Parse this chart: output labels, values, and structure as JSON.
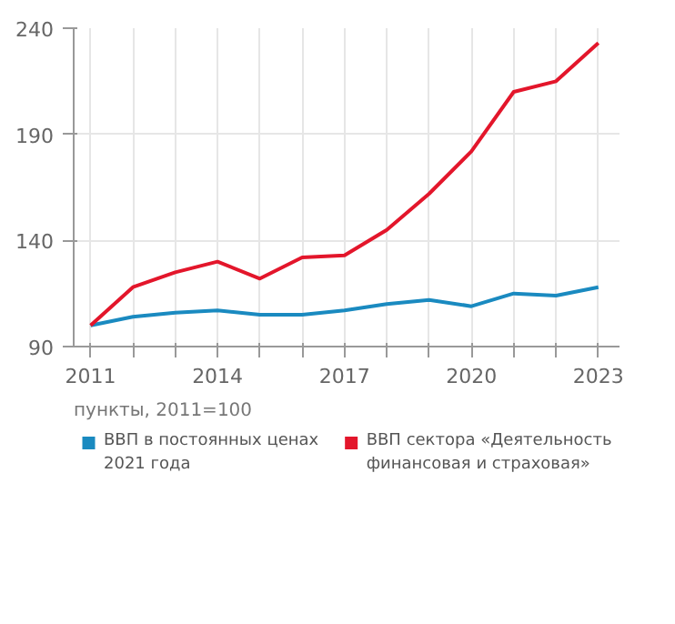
{
  "chart_data": {
    "type": "line",
    "x": [
      2011,
      2012,
      2013,
      2014,
      2015,
      2016,
      2017,
      2018,
      2019,
      2020,
      2021,
      2022,
      2023
    ],
    "series": [
      {
        "name": "ВВП в постоянных ценах 2021 года",
        "color": "#1a8ac0",
        "values": [
          100,
          104,
          106,
          107,
          105,
          105,
          107,
          110,
          112,
          109,
          115,
          114,
          118
        ]
      },
      {
        "name": "ВВП сектора «Деятельность финансовая и страховая»",
        "color": "#e3162b",
        "values": [
          100,
          118,
          125,
          130,
          122,
          132,
          133,
          145,
          162,
          182,
          210,
          215,
          233
        ]
      }
    ],
    "xlim": [
      2010.6,
      2023.5
    ],
    "ylim": [
      90,
      240
    ],
    "xticks": [
      2011,
      {
        "value": 2012,
        "label": null
      },
      {
        "value": 2013,
        "label": null
      },
      2014,
      {
        "value": 2015,
        "label": null
      },
      {
        "value": 2016,
        "label": null
      },
      2017,
      {
        "value": 2018,
        "label": null
      },
      {
        "value": 2019,
        "label": null
      },
      2020,
      {
        "value": 2021,
        "label": null
      },
      {
        "value": 2022,
        "label": null
      },
      2023
    ],
    "yticks": [
      90,
      140,
      190,
      240
    ],
    "annotations": [
      "пункты, 2011=100"
    ],
    "grid": true,
    "legend": "bottom",
    "line_style": "solid",
    "marker": "none"
  }
}
